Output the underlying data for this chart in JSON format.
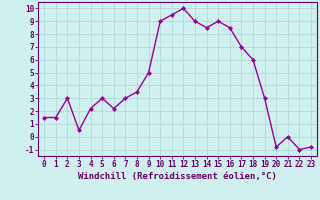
{
  "x": [
    0,
    1,
    2,
    3,
    4,
    5,
    6,
    7,
    8,
    9,
    10,
    11,
    12,
    13,
    14,
    15,
    16,
    17,
    18,
    19,
    20,
    21,
    22,
    23
  ],
  "y": [
    1.5,
    1.5,
    3.0,
    0.5,
    2.2,
    3.0,
    2.2,
    3.0,
    3.5,
    5.0,
    9.0,
    9.5,
    10.0,
    9.0,
    8.5,
    9.0,
    8.5,
    7.0,
    6.0,
    3.0,
    -0.8,
    0.0,
    -1.0,
    -0.8
  ],
  "line_color": "#990099",
  "marker": "D",
  "marker_size": 2.0,
  "bg_color": "#d0f0f0",
  "grid_color": "#b0d8d8",
  "xlabel": "Windchill (Refroidissement éolien,°C)",
  "xlabel_color": "#660066",
  "xlabel_fontsize": 6.5,
  "ylabel_ticks": [
    -1,
    0,
    1,
    2,
    3,
    4,
    5,
    6,
    7,
    8,
    9,
    10
  ],
  "xtick_labels": [
    "0",
    "1",
    "2",
    "3",
    "4",
    "5",
    "6",
    "7",
    "8",
    "9",
    "10",
    "11",
    "12",
    "13",
    "14",
    "15",
    "16",
    "17",
    "18",
    "19",
    "20",
    "21",
    "22",
    "23"
  ],
  "ylim": [
    -1.5,
    10.5
  ],
  "xlim": [
    -0.5,
    23.5
  ],
  "tick_color": "#660066",
  "tick_fontsize": 5.5,
  "spine_color": "#660066",
  "linewidth": 1.0
}
